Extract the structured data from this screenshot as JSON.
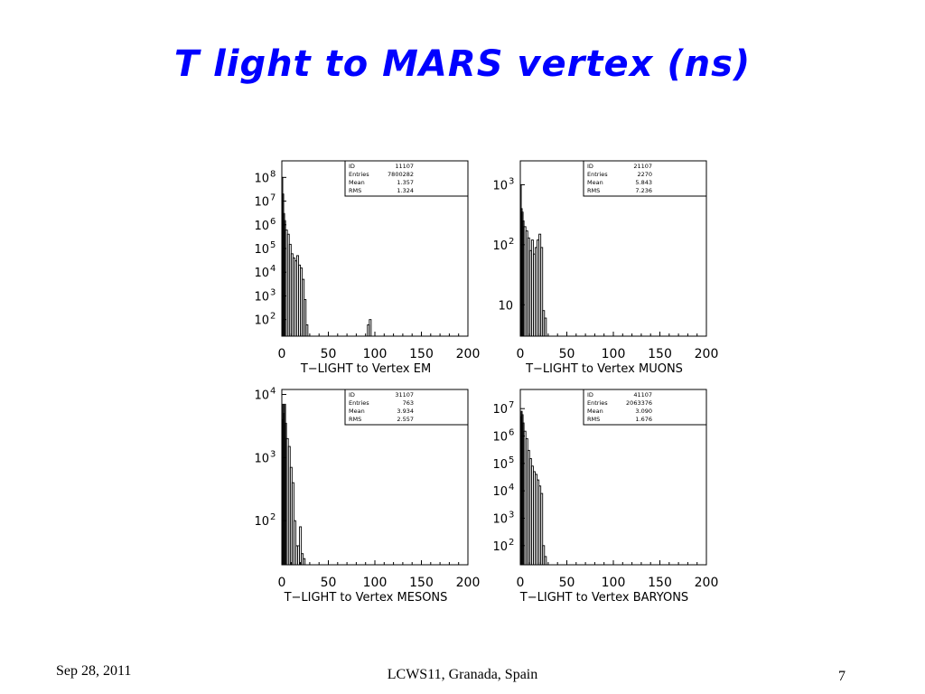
{
  "slide": {
    "title": "T light to MARS vertex (ns)",
    "footer_date": "Sep 28, 2011",
    "footer_center": "LCWS11, Granada, Spain",
    "page_number": "7"
  },
  "chart_data": [
    {
      "type": "histogram",
      "xlabel": "T−LIGHT to Vertex EM",
      "xlim": [
        0,
        200
      ],
      "xticks": [
        0,
        50,
        100,
        150,
        200
      ],
      "yscale": "log",
      "ylim": [
        20,
        500000000
      ],
      "yticks": [
        {
          "value": 100,
          "label": "10",
          "exp": "2"
        },
        {
          "value": 1000,
          "label": "10",
          "exp": "3"
        },
        {
          "value": 10000,
          "label": "10",
          "exp": "4"
        },
        {
          "value": 100000,
          "label": "10",
          "exp": "5"
        },
        {
          "value": 1000000,
          "label": "10",
          "exp": "6"
        },
        {
          "value": 10000000,
          "label": "10",
          "exp": "7"
        },
        {
          "value": 100000000,
          "label": "10",
          "exp": "8"
        }
      ],
      "stats": [
        {
          "label": "ID",
          "value": "11107"
        },
        {
          "label": "Entries",
          "value": "7800282"
        },
        {
          "label": "Mean",
          "value": "1.357"
        },
        {
          "label": "RMS",
          "value": "1.324"
        }
      ],
      "bins": [
        [
          0,
          1,
          100000000
        ],
        [
          1,
          2,
          20000000
        ],
        [
          2,
          3,
          3000000
        ],
        [
          3,
          4,
          1500000
        ],
        [
          4,
          6,
          600000
        ],
        [
          6,
          8,
          400000
        ],
        [
          8,
          10,
          150000
        ],
        [
          10,
          12,
          60000
        ],
        [
          12,
          14,
          40000
        ],
        [
          14,
          16,
          30000
        ],
        [
          16,
          18,
          50000
        ],
        [
          18,
          20,
          20000
        ],
        [
          20,
          22,
          15000
        ],
        [
          22,
          24,
          5000
        ],
        [
          24,
          26,
          700
        ],
        [
          26,
          28,
          60
        ],
        [
          92,
          94,
          60
        ],
        [
          94,
          96,
          100
        ]
      ]
    },
    {
      "type": "histogram",
      "xlabel": "T−LIGHT to Vertex MUONS",
      "xlim": [
        0,
        200
      ],
      "xticks": [
        0,
        50,
        100,
        150,
        200
      ],
      "yscale": "log",
      "ylim": [
        3,
        2500
      ],
      "yticks": [
        {
          "value": 10,
          "label": "10",
          "exp": ""
        },
        {
          "value": 100,
          "label": "10",
          "exp": "2"
        },
        {
          "value": 1000,
          "label": "10",
          "exp": "3"
        }
      ],
      "stats": [
        {
          "label": "ID",
          "value": "21107"
        },
        {
          "label": "Entries",
          "value": "2270"
        },
        {
          "label": "Mean",
          "value": "5.843"
        },
        {
          "label": "RMS",
          "value": "7.236"
        }
      ],
      "bins": [
        [
          0,
          1,
          1000
        ],
        [
          1,
          2,
          400
        ],
        [
          2,
          3,
          350
        ],
        [
          3,
          4,
          250
        ],
        [
          4,
          6,
          200
        ],
        [
          6,
          8,
          170
        ],
        [
          8,
          10,
          130
        ],
        [
          10,
          12,
          80
        ],
        [
          12,
          14,
          120
        ],
        [
          14,
          16,
          70
        ],
        [
          16,
          18,
          90
        ],
        [
          18,
          20,
          120
        ],
        [
          20,
          22,
          150
        ],
        [
          22,
          24,
          90
        ],
        [
          24,
          26,
          8
        ],
        [
          26,
          28,
          6
        ]
      ]
    },
    {
      "type": "histogram",
      "xlabel": "T−LIGHT to Vertex MESONS",
      "xlim": [
        0,
        200
      ],
      "xticks": [
        0,
        50,
        100,
        150,
        200
      ],
      "yscale": "log",
      "ylim": [
        20,
        12000
      ],
      "yticks": [
        {
          "value": 100,
          "label": "10",
          "exp": "2"
        },
        {
          "value": 1000,
          "label": "10",
          "exp": "3"
        },
        {
          "value": 10000,
          "label": "10",
          "exp": "4"
        }
      ],
      "stats": [
        {
          "label": "ID",
          "value": "31107"
        },
        {
          "label": "Entries",
          "value": "763"
        },
        {
          "label": "Mean",
          "value": "3.934"
        },
        {
          "label": "RMS",
          "value": "2.557"
        }
      ],
      "bins": [
        [
          0,
          1,
          4000
        ],
        [
          1,
          2,
          7000
        ],
        [
          2,
          3,
          5000
        ],
        [
          3,
          4,
          7000
        ],
        [
          4,
          5,
          3500
        ],
        [
          5,
          7,
          2000
        ],
        [
          7,
          9,
          1500
        ],
        [
          9,
          11,
          700
        ],
        [
          11,
          13,
          400
        ],
        [
          13,
          15,
          100
        ],
        [
          15,
          17,
          40
        ],
        [
          17,
          19,
          40
        ],
        [
          19,
          21,
          80
        ],
        [
          21,
          23,
          30
        ],
        [
          23,
          25,
          25
        ]
      ]
    },
    {
      "type": "histogram",
      "xlabel": "T−LIGHT to Vertex BARYONS",
      "xlim": [
        0,
        200
      ],
      "xticks": [
        0,
        50,
        100,
        150,
        200
      ],
      "yscale": "log",
      "ylim": [
        20,
        50000000
      ],
      "yticks": [
        {
          "value": 100,
          "label": "10",
          "exp": "2"
        },
        {
          "value": 1000,
          "label": "10",
          "exp": "3"
        },
        {
          "value": 10000,
          "label": "10",
          "exp": "4"
        },
        {
          "value": 100000,
          "label": "10",
          "exp": "5"
        },
        {
          "value": 1000000,
          "label": "10",
          "exp": "6"
        },
        {
          "value": 10000000,
          "label": "10",
          "exp": "7"
        }
      ],
      "stats": [
        {
          "label": "ID",
          "value": "41107"
        },
        {
          "label": "Entries",
          "value": "2063376"
        },
        {
          "label": "Mean",
          "value": "3.090"
        },
        {
          "label": "RMS",
          "value": "1.676"
        }
      ],
      "bins": [
        [
          0,
          1,
          5000000
        ],
        [
          1,
          2,
          8000000
        ],
        [
          2,
          3,
          6000000
        ],
        [
          3,
          4,
          3000000
        ],
        [
          4,
          6,
          1500000
        ],
        [
          6,
          8,
          800000
        ],
        [
          8,
          10,
          300000
        ],
        [
          10,
          12,
          150000
        ],
        [
          12,
          14,
          80000
        ],
        [
          14,
          16,
          50000
        ],
        [
          16,
          18,
          40000
        ],
        [
          18,
          20,
          25000
        ],
        [
          20,
          22,
          15000
        ],
        [
          22,
          24,
          8000
        ],
        [
          24,
          26,
          100
        ],
        [
          26,
          28,
          40
        ]
      ]
    }
  ]
}
